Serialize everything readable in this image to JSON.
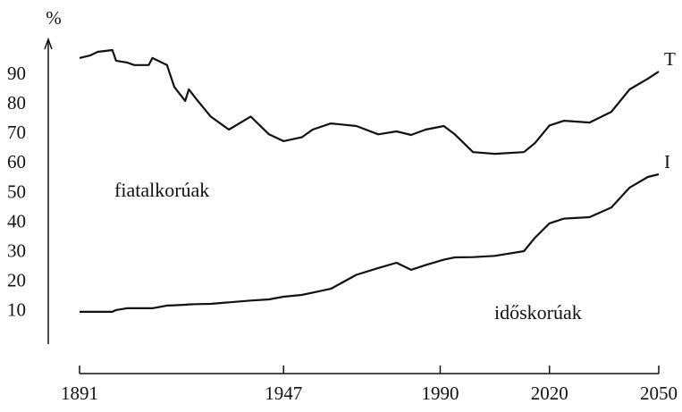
{
  "chart_data": {
    "type": "line",
    "y_label": "%",
    "annotations": [
      "fiatalkorúak",
      "időskorúak"
    ],
    "x": [
      1891,
      1894,
      1896,
      1900,
      1901,
      1904,
      1906,
      1910,
      1911,
      1915,
      1917,
      1920,
      1921,
      1923,
      1927,
      1932,
      1938,
      1943,
      1947,
      1952,
      1955,
      1960,
      1967,
      1973,
      1978,
      1982,
      1986,
      1991,
      1994,
      1999,
      2005,
      2013,
      2016,
      2020,
      2024,
      2031,
      2037,
      2042,
      2047,
      2050
    ],
    "series": [
      {
        "name": "T",
        "color": "#111111",
        "values": [
          95.8,
          96.7,
          97.9,
          98.5,
          94.9,
          94.3,
          93.4,
          93.4,
          95.8,
          93.4,
          86,
          81.3,
          85.2,
          82,
          76,
          71.6,
          76,
          70,
          67.7,
          69,
          71.6,
          73.7,
          72.8,
          70,
          71,
          69.8,
          71.6,
          72.8,
          70,
          64,
          63.4,
          64,
          67,
          73,
          74.6,
          74,
          77.6,
          85.2,
          88.8,
          91.2
        ]
      },
      {
        "name": "I",
        "color": "#111111",
        "values": [
          10,
          10,
          10,
          10,
          10.6,
          11.2,
          11.2,
          11.2,
          11.2,
          12.1,
          12.2,
          12.4,
          12.5,
          12.6,
          12.7,
          13.2,
          13.8,
          14.2,
          15.1,
          15.7,
          16.5,
          17.8,
          22.5,
          24.8,
          26.6,
          24.2,
          25.8,
          27.6,
          28.4,
          28.5,
          28.9,
          30.5,
          35,
          39.9,
          41.5,
          42,
          45.3,
          52,
          55.6,
          56.5
        ]
      }
    ],
    "xlim": [
      1891,
      2050
    ],
    "xticks": [
      1891,
      1947,
      1990,
      2020,
      2050
    ],
    "ylim": [
      0,
      100
    ],
    "yticks": [
      10,
      20,
      30,
      40,
      50,
      60,
      70,
      80,
      90
    ],
    "grid": false
  }
}
